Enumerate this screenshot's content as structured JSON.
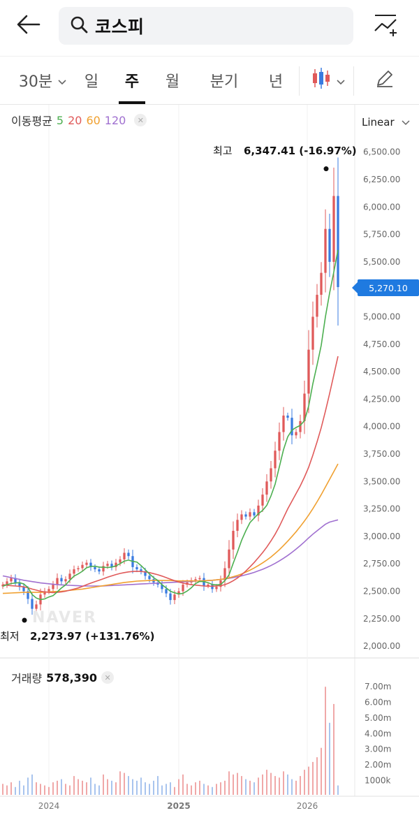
{
  "header": {
    "back_icon": "back-arrow-icon",
    "search_icon": "search-icon",
    "query": "코스피",
    "compare_icon": "chart-add-icon"
  },
  "tabs": {
    "items": [
      "30분",
      "일",
      "주",
      "월",
      "분기",
      "년"
    ],
    "active": "주",
    "chart_type_icon": "candlestick-icon",
    "draw_icon": "pencil-icon"
  },
  "indicator": {
    "label": "이동평균",
    "periods": [
      "5",
      "20",
      "60",
      "120"
    ],
    "colors": {
      "5": "#4caf50",
      "20": "#e05a5a",
      "60": "#f0a030",
      "120": "#a070d0"
    },
    "close_icon": "close-icon"
  },
  "scale": {
    "label": "Linear"
  },
  "highlights": {
    "high_label": "최고",
    "high_value": "6,347.41 (-16.97%)",
    "low_label": "최저",
    "low_value": "2,273.97 (+131.76%)"
  },
  "current_price": "5,270.10",
  "volume": {
    "label": "거래량",
    "value": "578,390"
  },
  "watermark": "NAVER",
  "colors": {
    "up": "#e05a5a",
    "down": "#3a7be0",
    "accent": "#1f7ae0"
  },
  "chart_data": {
    "type": "candlestick",
    "y_ticks": [
      "6,500.00",
      "6,250.00",
      "6,000.00",
      "5,750.00",
      "5,500.00",
      "5,250.00",
      "5,000.00",
      "4,750.00",
      "4,500.00",
      "4,250.00",
      "4,000.00",
      "3,750.00",
      "3,500.00",
      "3,250.00",
      "3,000.00",
      "2,750.00",
      "2,500.00",
      "2,250.00",
      "2,000.00"
    ],
    "ylim": [
      2000,
      6500
    ],
    "x_ticks": [
      "2024",
      "2025",
      "2026"
    ],
    "volume_ticks": [
      "7.00m",
      "6.00m",
      "5.00m",
      "4.00m",
      "3.00m",
      "2.00m",
      "1000k"
    ],
    "close": [
      2560,
      2590,
      2620,
      2580,
      2540,
      2500,
      2430,
      2340,
      2380,
      2470,
      2500,
      2520,
      2560,
      2620,
      2590,
      2610,
      2660,
      2700,
      2710,
      2740,
      2760,
      2720,
      2700,
      2680,
      2730,
      2750,
      2720,
      2760,
      2790,
      2850,
      2820,
      2720,
      2700,
      2680,
      2640,
      2610,
      2580,
      2560,
      2520,
      2480,
      2420,
      2470,
      2500,
      2560,
      2580,
      2600,
      2610,
      2620,
      2550,
      2560,
      2520,
      2540,
      2600,
      2710,
      2880,
      3050,
      3150,
      3200,
      3180,
      3220,
      3190,
      3280,
      3380,
      3500,
      3620,
      3780,
      3950,
      4100,
      4080,
      3920,
      3950,
      4050,
      4300,
      4700,
      5000,
      5200,
      5400,
      5800,
      5500,
      6100,
      5270
    ],
    "ma5": [
      2545,
      2560,
      2570,
      2575,
      2578,
      2566,
      2534,
      2470,
      2438,
      2424,
      2430,
      2448,
      2460,
      2494,
      2530,
      2558,
      2600,
      2638,
      2658,
      2682,
      2714,
      2726,
      2728,
      2720,
      2718,
      2716,
      2720,
      2730,
      2752,
      2774,
      2784,
      2772,
      2766,
      2734,
      2696,
      2658,
      2624,
      2598,
      2560,
      2530,
      2500,
      2486,
      2476,
      2480,
      2502,
      2532,
      2570,
      2590,
      2588,
      2578,
      2562,
      2558,
      2562,
      2596,
      2650,
      2756,
      2856,
      2964,
      3050,
      3126,
      3166,
      3206,
      3236,
      3282,
      3368,
      3476,
      3632,
      3790,
      3906,
      3966,
      3992,
      4010,
      4054,
      4186,
      4390,
      4560,
      4740,
      5000,
      5216,
      5408,
      5608
    ],
    "ma20": [
      2560,
      2555,
      2550,
      2548,
      2545,
      2540,
      2532,
      2520,
      2510,
      2500,
      2494,
      2490,
      2488,
      2490,
      2494,
      2500,
      2510,
      2520,
      2530,
      2544,
      2560,
      2574,
      2588,
      2600,
      2614,
      2628,
      2640,
      2652,
      2662,
      2670,
      2676,
      2680,
      2682,
      2680,
      2676,
      2670,
      2660,
      2650,
      2638,
      2624,
      2610,
      2596,
      2584,
      2574,
      2566,
      2560,
      2556,
      2552,
      2548,
      2546,
      2546,
      2548,
      2552,
      2560,
      2576,
      2596,
      2620,
      2650,
      2684,
      2722,
      2762,
      2806,
      2852,
      2902,
      2958,
      3020,
      3090,
      3170,
      3250,
      3320,
      3390,
      3460,
      3540,
      3630,
      3740,
      3860,
      3990,
      4140,
      4300,
      4470,
      4640
    ],
    "ma60": [
      2480,
      2482,
      2484,
      2486,
      2488,
      2490,
      2490,
      2490,
      2490,
      2490,
      2492,
      2494,
      2496,
      2498,
      2500,
      2504,
      2508,
      2512,
      2516,
      2520,
      2526,
      2532,
      2538,
      2544,
      2550,
      2556,
      2562,
      2568,
      2574,
      2580,
      2584,
      2588,
      2592,
      2594,
      2596,
      2598,
      2598,
      2598,
      2598,
      2598,
      2598,
      2596,
      2594,
      2594,
      2594,
      2594,
      2594,
      2594,
      2596,
      2598,
      2600,
      2604,
      2608,
      2614,
      2622,
      2632,
      2644,
      2658,
      2674,
      2692,
      2712,
      2734,
      2758,
      2784,
      2812,
      2844,
      2878,
      2916,
      2956,
      2998,
      3042,
      3090,
      3140,
      3194,
      3252,
      3314,
      3380,
      3450,
      3520,
      3590,
      3660
    ],
    "ma120": [
      2640,
      2632,
      2624,
      2616,
      2608,
      2600,
      2594,
      2588,
      2582,
      2576,
      2572,
      2568,
      2564,
      2560,
      2558,
      2556,
      2554,
      2552,
      2550,
      2548,
      2548,
      2548,
      2548,
      2548,
      2548,
      2550,
      2552,
      2554,
      2556,
      2558,
      2560,
      2562,
      2564,
      2566,
      2568,
      2570,
      2572,
      2574,
      2576,
      2578,
      2580,
      2582,
      2584,
      2586,
      2588,
      2590,
      2592,
      2594,
      2596,
      2598,
      2600,
      2604,
      2608,
      2612,
      2618,
      2624,
      2632,
      2640,
      2650,
      2660,
      2672,
      2686,
      2700,
      2716,
      2734,
      2754,
      2776,
      2800,
      2826,
      2854,
      2884,
      2916,
      2950,
      2986,
      3020,
      3050,
      3080,
      3110,
      3130,
      3140,
      3150
    ],
    "volume_m": [
      0.7,
      0.6,
      0.8,
      0.5,
      0.9,
      0.6,
      1.1,
      1.3,
      0.8,
      0.7,
      0.6,
      0.5,
      0.8,
      0.9,
      1.0,
      0.7,
      0.6,
      1.2,
      1.0,
      0.9,
      0.8,
      1.1,
      0.7,
      0.6,
      1.3,
      1.0,
      0.9,
      0.8,
      1.5,
      1.4,
      1.2,
      1.0,
      0.9,
      1.1,
      0.8,
      0.7,
      0.9,
      1.2,
      0.6,
      0.7,
      0.8,
      0.5,
      1.0,
      1.3,
      0.7,
      0.6,
      0.8,
      0.9,
      0.7,
      0.6,
      0.5,
      0.7,
      0.8,
      0.9,
      1.5,
      1.3,
      1.4,
      1.2,
      1.0,
      0.9,
      0.8,
      1.1,
      1.3,
      1.6,
      1.4,
      1.2,
      1.1,
      1.5,
      1.3,
      1.0,
      0.9,
      1.2,
      1.6,
      1.8,
      2.1,
      2.4,
      3.0,
      6.9,
      4.6,
      5.8,
      0.6
    ]
  }
}
